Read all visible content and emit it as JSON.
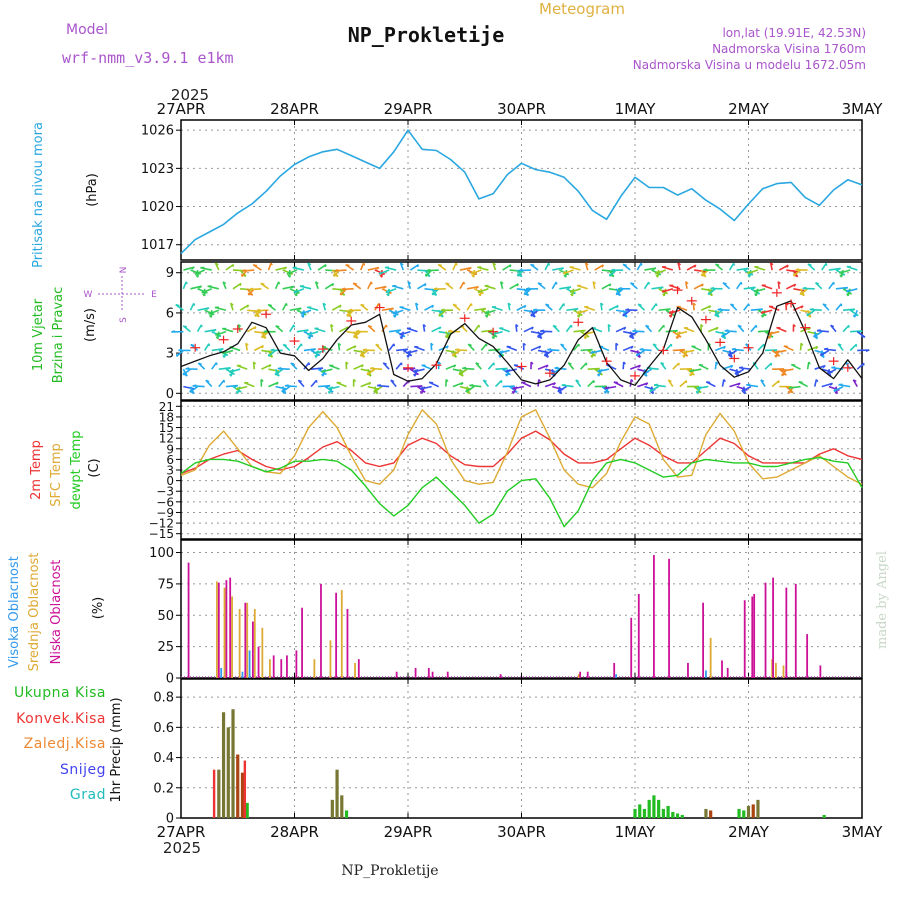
{
  "header": {
    "model_label": "Model",
    "model_name": "wrf-nmm_v3.9.1 e1km",
    "title": "NP_Prokletije",
    "subtitle": "Meteogram",
    "lonlat": "lon,lat (19.91E, 42.53N)",
    "elevation": "Nadmorska Visina 1760m",
    "model_elevation": "Nadmorska Visina u modelu 1672.05m",
    "year": "2025",
    "footer": "NP_Prokletije",
    "watermark": "made by Angel"
  },
  "colors": {
    "pressure": "#2aa7e0",
    "wind": "#22bb22",
    "temp2m": "#ee3333",
    "sfc": "#ddaa33",
    "dewpt": "#22cc22",
    "cloud_high": "#3399ee",
    "cloud_mid": "#ddaa33",
    "cloud_low": "#cc1199",
    "precip_total": "#22bb22",
    "precip_conv": "#ee3333",
    "precip_frozen": "#ee8833",
    "precip_snow": "#4444ee",
    "precip_hail": "#22bbbb",
    "model": "#aa55cc"
  },
  "chart_data": [
    {
      "type": "line",
      "panel": "pressure",
      "ylabel_lines": [
        "Pritisak na nivou mora",
        "(hPa)"
      ],
      "x_ticks_top": [
        "27APR",
        "28APR",
        "29APR",
        "30APR",
        "1MAY",
        "2MAY",
        "3MAY"
      ],
      "y_ticks": [
        1017,
        1020,
        1023,
        1026
      ],
      "ylim": [
        1015.8,
        1026.8
      ],
      "x": [
        0,
        3,
        6,
        9,
        12,
        15,
        18,
        21,
        24,
        27,
        30,
        33,
        36,
        39,
        42,
        45,
        48,
        51,
        54,
        57,
        60,
        63,
        66,
        69,
        72,
        75,
        78,
        81,
        84,
        87,
        90,
        93,
        96,
        99,
        102,
        105,
        108,
        111,
        114,
        117,
        120,
        123,
        126,
        129,
        132,
        135,
        138,
        141,
        144
      ],
      "values": [
        1016.3,
        1017.4,
        1018.0,
        1018.6,
        1019.5,
        1020.2,
        1021.2,
        1022.4,
        1023.3,
        1023.9,
        1024.3,
        1024.5,
        1024.0,
        1023.5,
        1023.0,
        1024.3,
        1026.0,
        1024.5,
        1024.4,
        1023.7,
        1022.7,
        1020.6,
        1021.0,
        1022.5,
        1023.4,
        1022.9,
        1022.7,
        1022.3,
        1021.2,
        1019.7,
        1019.0,
        1020.8,
        1022.3,
        1021.5,
        1021.5,
        1020.9,
        1021.4,
        1020.5,
        1019.8,
        1018.9,
        1020.2,
        1021.4,
        1021.8,
        1021.9,
        1020.7,
        1020.1,
        1021.3,
        1022.1,
        1021.7
      ]
    },
    {
      "type": "line",
      "panel": "wind",
      "ylabel_lines": [
        "10m Vjetar",
        "Brzina i Pravac",
        "(m/s)"
      ],
      "compass": [
        "N",
        "W",
        "E",
        "S"
      ],
      "y_ticks": [
        0,
        3,
        6,
        9
      ],
      "ylim": [
        -0.5,
        9.8
      ],
      "x": [
        0,
        3,
        6,
        9,
        12,
        15,
        18,
        21,
        24,
        27,
        30,
        33,
        36,
        39,
        42,
        45,
        48,
        51,
        54,
        57,
        60,
        63,
        66,
        69,
        72,
        75,
        78,
        81,
        84,
        87,
        90,
        93,
        96,
        99,
        102,
        105,
        108,
        111,
        114,
        117,
        120,
        123,
        126,
        129,
        132,
        135,
        138,
        141,
        144
      ],
      "values": [
        2.0,
        2.4,
        2.8,
        3.1,
        3.7,
        5.3,
        4.9,
        3.0,
        2.8,
        1.7,
        2.6,
        4.0,
        5.1,
        5.3,
        5.9,
        1.4,
        0.9,
        1.1,
        2.2,
        4.4,
        5.2,
        4.1,
        3.5,
        2.3,
        1.0,
        0.7,
        1.0,
        2.1,
        4.0,
        4.9,
        2.3,
        1.0,
        0.6,
        2.0,
        3.3,
        6.4,
        5.7,
        4.0,
        2.1,
        1.2,
        1.6,
        3.0,
        6.5,
        6.9,
        4.6,
        1.9,
        1.1,
        2.5,
        1.1
      ],
      "gusts_x": [
        3,
        9,
        12,
        18,
        24,
        30,
        36,
        42,
        48,
        54,
        60,
        66,
        72,
        78,
        84,
        90,
        96,
        102,
        105,
        108,
        111,
        114,
        117,
        120,
        126,
        129,
        132,
        138,
        141
      ],
      "gusts": [
        3.4,
        4.0,
        4.8,
        5.9,
        3.9,
        3.3,
        5.4,
        6.4,
        1.9,
        2.1,
        5.6,
        4.6,
        2.0,
        1.5,
        5.3,
        2.4,
        1.3,
        3.2,
        7.7,
        6.9,
        5.5,
        3.8,
        2.6,
        3.4,
        7.5,
        6.7,
        4.9,
        2.4,
        1.9
      ]
    },
    {
      "type": "line",
      "panel": "temperature",
      "ylabel_lines": [
        "2m Temp",
        "SFC Temp",
        "dewpt Temp",
        "(C)"
      ],
      "y_ticks": [
        -15,
        -12,
        -9,
        -6,
        -3,
        0,
        3,
        6,
        9,
        12,
        15,
        18,
        21
      ],
      "ylim": [
        -16.5,
        22.5
      ],
      "x": [
        0,
        3,
        6,
        9,
        12,
        15,
        18,
        21,
        24,
        27,
        30,
        33,
        36,
        39,
        42,
        45,
        48,
        51,
        54,
        57,
        60,
        63,
        66,
        69,
        72,
        75,
        78,
        81,
        84,
        87,
        90,
        93,
        96,
        99,
        102,
        105,
        108,
        111,
        114,
        117,
        120,
        123,
        126,
        129,
        132,
        135,
        138,
        141,
        144
      ],
      "series": [
        {
          "name": "2m Temp",
          "key": "temp2m",
          "values": [
            2.0,
            3.5,
            6.0,
            7.5,
            8.5,
            6.0,
            4.0,
            3.0,
            4.0,
            6.5,
            9.5,
            11.0,
            8.5,
            5.0,
            4.0,
            5.0,
            10.0,
            12.0,
            10.5,
            7.0,
            4.5,
            4.0,
            4.0,
            7.5,
            12.0,
            14.0,
            11.5,
            7.5,
            5.0,
            5.0,
            6.0,
            9.0,
            12.0,
            10.0,
            7.0,
            5.0,
            5.0,
            8.5,
            12.0,
            10.5,
            7.0,
            5.0,
            5.0,
            5.0,
            5.0,
            7.5,
            9.0,
            7.0,
            6.0
          ]
        },
        {
          "name": "SFC Temp",
          "key": "sfc",
          "values": [
            1.5,
            3.0,
            10.0,
            14.0,
            9.0,
            4.0,
            2.5,
            2.0,
            7.0,
            15.0,
            19.5,
            15.0,
            7.0,
            0.0,
            -1.0,
            3.0,
            13.0,
            20.0,
            16.0,
            6.0,
            0.0,
            -1.0,
            -0.5,
            8.0,
            18.0,
            20.0,
            12.0,
            3.0,
            -1.0,
            -2.0,
            2.0,
            11.0,
            18.0,
            16.0,
            6.0,
            1.0,
            1.5,
            13.0,
            19.0,
            14.0,
            5.0,
            0.5,
            1.0,
            3.0,
            5.0,
            7.0,
            4.0,
            1.0,
            -1.0
          ]
        },
        {
          "name": "dewpt Temp",
          "key": "dewpt",
          "values": [
            2.0,
            5.0,
            6.0,
            6.0,
            5.5,
            4.0,
            2.5,
            3.5,
            5.5,
            5.5,
            6.0,
            5.5,
            3.0,
            -1.5,
            -6.5,
            -10.0,
            -7.0,
            -2.0,
            1.0,
            -3.0,
            -7.0,
            -12.0,
            -9.5,
            -3.0,
            0.0,
            0.5,
            -5.0,
            -13.0,
            -8.5,
            0.0,
            5.0,
            6.0,
            5.0,
            3.0,
            1.0,
            1.5,
            5.0,
            6.0,
            5.5,
            5.0,
            5.0,
            4.0,
            4.0,
            5.0,
            6.0,
            6.5,
            5.5,
            5.0,
            -2.0
          ]
        }
      ]
    },
    {
      "type": "bar",
      "panel": "cloud",
      "ylabel_lines": [
        "Visoka Oblacnost",
        "Srednja Oblacnost",
        "Niska Oblacnost",
        "(%)"
      ],
      "y_ticks": [
        0,
        25,
        50,
        75,
        100
      ],
      "ylim": [
        0,
        110
      ],
      "series": [
        {
          "name": "Visoka Oblacnost",
          "key": "cloud_high",
          "x": [
            8.5,
            13,
            14.5,
            92,
            111,
            128
          ],
          "values": [
            8,
            5,
            22,
            3,
            6,
            5
          ]
        },
        {
          "name": "Srednja Oblacnost",
          "key": "cloud_mid",
          "x": [
            7.6,
            9.2,
            10.8,
            12.4,
            14,
            15.6,
            17.2,
            18.8,
            28.2,
            31.6,
            34,
            36.8,
            84.1,
            112,
            125,
            125.8,
            127.4
          ],
          "values": [
            77,
            72,
            65,
            55,
            60,
            55,
            40,
            15,
            15,
            30,
            70,
            12,
            3,
            32,
            15,
            12,
            10
          ]
        },
        {
          "name": "Niska Oblacnost",
          "key": "cloud_low",
          "x": [
            1.6,
            8,
            9.6,
            10.4,
            13.6,
            15.2,
            16.4,
            19.6,
            21.2,
            22.4,
            24.4,
            25.6,
            29.6,
            32.8,
            35.2,
            37.6,
            45.6,
            49.6,
            52.4,
            53.2,
            56.4,
            67.6,
            84.4,
            86,
            91.6,
            95.2,
            96.8,
            100,
            103.2,
            107.2,
            110.4,
            114.4,
            115.6,
            119.2,
            120.8,
            121.2,
            123.6,
            125.2,
            128,
            130,
            132.4,
            135.2
          ],
          "values": [
            92,
            76,
            78,
            80,
            60,
            45,
            25,
            18,
            15,
            18,
            22,
            56,
            75,
            68,
            55,
            15,
            5,
            8,
            8,
            5,
            5,
            3,
            5,
            5,
            12,
            48,
            67,
            98,
            95,
            12,
            60,
            14,
            8,
            62,
            65,
            67,
            76,
            80,
            72,
            75,
            35,
            10
          ]
        }
      ]
    },
    {
      "type": "bar",
      "panel": "precipitation",
      "ylabel_lines": [
        "1hr Precip (mm)"
      ],
      "legend": [
        "Ukupna Kisa",
        "Konvek.Kisa",
        "Zaledj.Kisa",
        "Snijeg",
        "Grad"
      ],
      "x_ticks_bottom": [
        "27APR",
        "28APR",
        "29APR",
        "30APR",
        "1MAY",
        "2MAY",
        "3MAY"
      ],
      "y_ticks": [
        0,
        0.2,
        0.4,
        0.6,
        0.8
      ],
      "ylim": [
        0,
        0.92
      ],
      "series": [
        {
          "name": "Ukupna Kisa",
          "key": "precip_total",
          "x": [
            8,
            9,
            10,
            11,
            12,
            13,
            14,
            32,
            33,
            34,
            35,
            96,
            97,
            98,
            99,
            100,
            101,
            102,
            103,
            104,
            105,
            106,
            111,
            112,
            118,
            119,
            120,
            121,
            122,
            136
          ],
          "values": [
            0.32,
            0.7,
            0.6,
            0.72,
            0.42,
            0.3,
            0.1,
            0.12,
            0.32,
            0.15,
            0.05,
            0.06,
            0.09,
            0.06,
            0.12,
            0.15,
            0.12,
            0.06,
            0.08,
            0.04,
            0.03,
            0.02,
            0.06,
            0.05,
            0.06,
            0.05,
            0.08,
            0.09,
            0.12,
            0.02
          ],
          "colors": [
            "#777733",
            "#777733",
            "#777733",
            "#777733",
            "#aa4411",
            "#aa4411",
            "#22bb22",
            "#777733",
            "#777733",
            "#777733",
            "#22bb22",
            "#22bb22",
            "#22bb22",
            "#22bb22",
            "#22bb22",
            "#22bb22",
            "#22bb22",
            "#22bb22",
            "#22bb22",
            "#22bb22",
            "#22bb22",
            "#22bb22",
            "#777733",
            "#aa4411",
            "#22bb22",
            "#22bb22",
            "#777733",
            "#aa4411",
            "#777733",
            "#22bb22"
          ]
        },
        {
          "name": "Konvek.Kisa",
          "key": "precip_conv",
          "x": [
            7,
            13.5
          ],
          "values": [
            0.32,
            0.38
          ]
        }
      ]
    }
  ]
}
